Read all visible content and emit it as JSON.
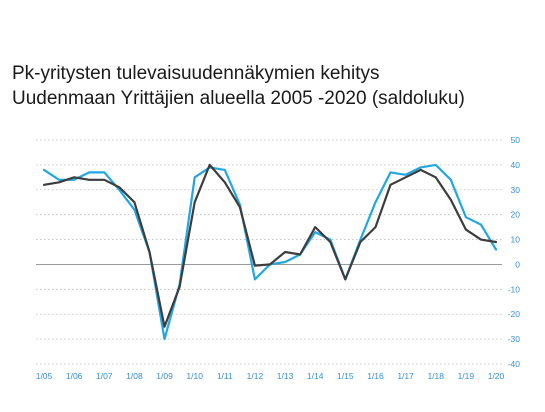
{
  "chart_data": {
    "type": "line",
    "title_lines": [
      "Pk-yritysten tulevaisuudennäkymien kehitys",
      "Uudenmaan Yrittäjien alueella 2005 -2020 (saldoluku)"
    ],
    "x_tick_labels": [
      "1/05",
      "1/06",
      "1/07",
      "1/08",
      "1/09",
      "1/10",
      "1/11",
      "1/12",
      "1/13",
      "1/14",
      "1/15",
      "1/16",
      "1/17",
      "1/18",
      "1/19",
      "1/20"
    ],
    "ylim": [
      -40,
      50
    ],
    "y_ticks": [
      -40,
      -30,
      -20,
      -10,
      0,
      10,
      20,
      30,
      40,
      50
    ],
    "grid": "horizontal dotted",
    "colors": {
      "series_1": "#22a7e0",
      "series_2": "#3d3d3d",
      "axis_labels": "#3b8fd0",
      "zero_line": "#9a9a9a",
      "grid": "#bcbcbc"
    },
    "series": [
      {
        "values": [
          38,
          34,
          34,
          37,
          37,
          30,
          22,
          5,
          -30,
          -8,
          35,
          39,
          38,
          24,
          -6,
          0,
          1,
          4,
          13,
          10,
          -6,
          10,
          25,
          37,
          36,
          39,
          40,
          34,
          19,
          16,
          6
        ]
      },
      {
        "values": [
          32,
          33,
          35,
          34,
          34,
          31,
          25,
          5,
          -25,
          -9,
          25,
          40,
          33,
          23,
          -0.5,
          0,
          5,
          4,
          15,
          9,
          -6,
          9,
          15,
          32,
          35,
          38,
          35,
          26,
          14,
          10,
          9
        ]
      }
    ]
  }
}
